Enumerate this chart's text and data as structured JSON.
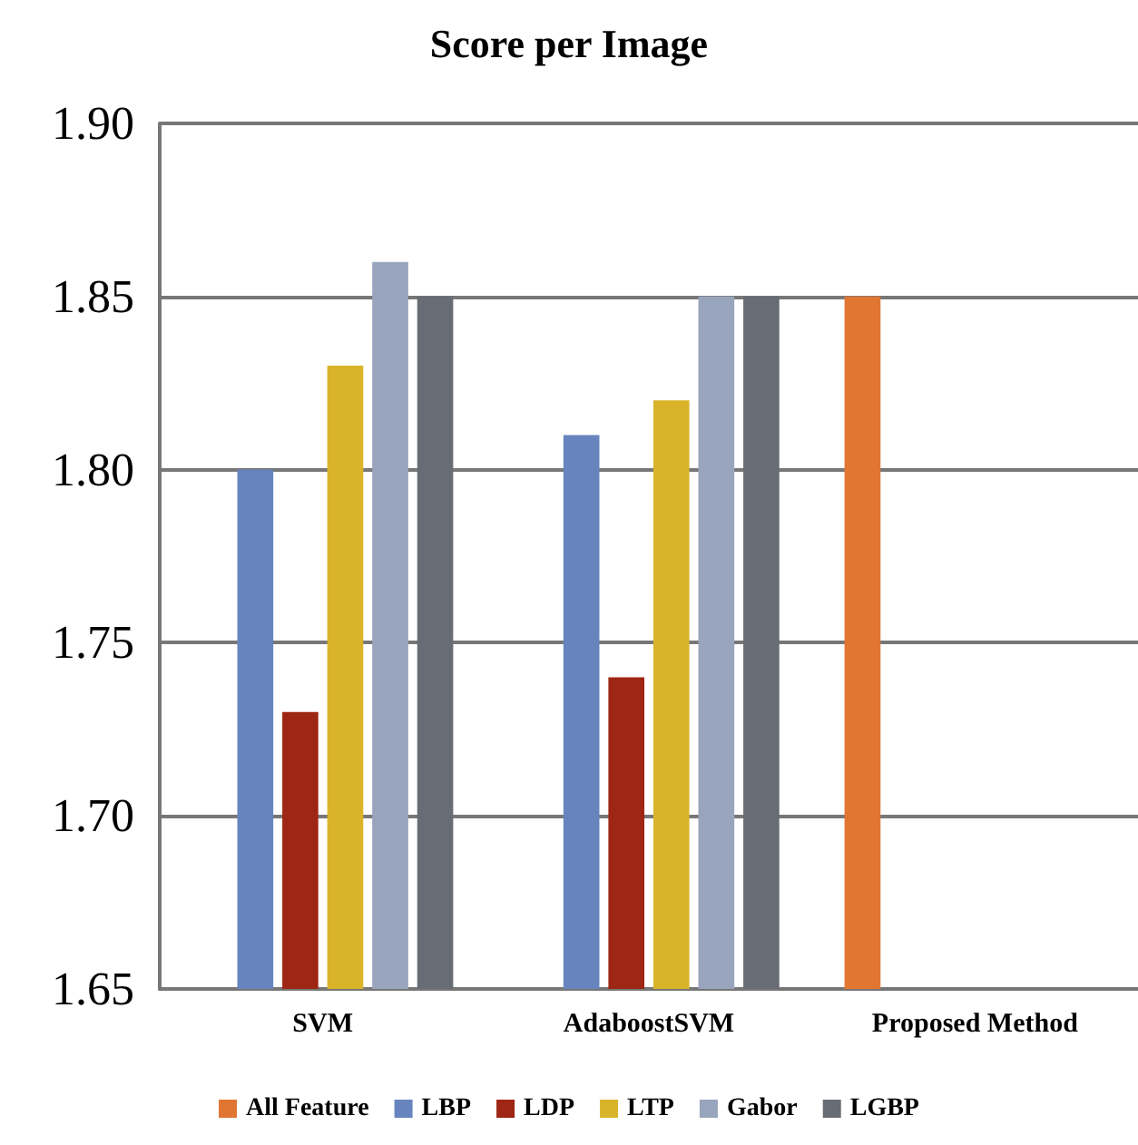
{
  "chart_data": {
    "type": "bar",
    "title": "Score per Image",
    "categories": [
      "SVM",
      "AdaboostSVM",
      "Proposed Method"
    ],
    "series": [
      {
        "name": "All Feature",
        "color": "#e07632",
        "values": [
          null,
          null,
          1.85
        ]
      },
      {
        "name": "LBP",
        "color": "#6784be",
        "values": [
          1.8,
          1.81,
          null
        ]
      },
      {
        "name": "LDP",
        "color": "#9e2614",
        "values": [
          1.73,
          1.74,
          null
        ]
      },
      {
        "name": "LTP",
        "color": "#d9b42a",
        "values": [
          1.83,
          1.82,
          null
        ]
      },
      {
        "name": "Gabor",
        "color": "#99a4bd",
        "values": [
          1.86,
          1.85,
          null
        ]
      },
      {
        "name": "LGBP",
        "color": "#686c74",
        "values": [
          1.85,
          1.85,
          null
        ]
      }
    ],
    "ylim": [
      1.65,
      1.9
    ],
    "yticks": [
      {
        "value": 1.65,
        "label": "1.65"
      },
      {
        "value": 1.7,
        "label": "1.70"
      },
      {
        "value": 1.75,
        "label": "1.75"
      },
      {
        "value": 1.8,
        "label": "1.80"
      },
      {
        "value": 1.85,
        "label": "1.85"
      },
      {
        "value": 1.9,
        "label": "1.90"
      }
    ],
    "grid": "y",
    "legend": "bottom"
  }
}
